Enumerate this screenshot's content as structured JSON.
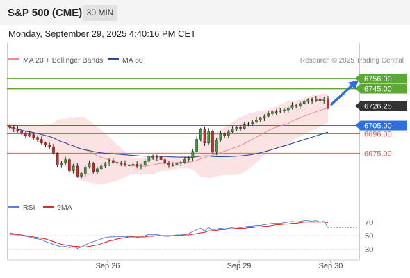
{
  "header": {
    "instrument": "S&P 500 (CME)",
    "interval": "30 MIN",
    "datetime": "Monday, September 29, 2025 4:40:16 PM CET"
  },
  "legend": {
    "bollinger": "MA 20 + Bollinger Bands",
    "ma50": "MA 50",
    "rsi": "RSI",
    "ma9": "9MA"
  },
  "attribution": "Research © 2025 Trading Central",
  "colors": {
    "resistance": "#5aa832",
    "pivot": "#2d6fde",
    "support": "#e25b5b",
    "last": "#333333",
    "ma50": "#2f4a9a",
    "bollinger_band": "#fbdada",
    "ma20": "#f08a8a",
    "rsi": "#5b7fd6",
    "rsi_ma9": "#d93030"
  },
  "chart_data": [
    {
      "type": "candlestick",
      "title": "S&P 500 (CME)",
      "ylim": [
        6630,
        6765
      ],
      "x": [
        "Sep 26",
        "Sep 29",
        "Sep 30"
      ],
      "levels": [
        {
          "value": 6756.0,
          "label": "6756.00",
          "kind": "resistance"
        },
        {
          "value": 6745.0,
          "label": "6745.00",
          "kind": "resistance"
        },
        {
          "value": 6726.25,
          "label": "6726.25",
          "kind": "last"
        },
        {
          "value": 6705.0,
          "label": "6705.00",
          "kind": "pivot"
        },
        {
          "value": 6696.0,
          "label": "6696.00",
          "kind": "support"
        },
        {
          "value": 6675.0,
          "label": "6675.00",
          "kind": "support"
        }
      ],
      "closes": [
        6703,
        6701,
        6699,
        6697,
        6694,
        6695,
        6692,
        6690,
        6686,
        6684,
        6682,
        6675,
        6662,
        6664,
        6668,
        6656,
        6661,
        6650,
        6653,
        6660,
        6664,
        6655,
        6658,
        6661,
        6664,
        6667,
        6665,
        6664,
        6664,
        6662,
        6662,
        6663,
        6660,
        6662,
        6666,
        6672,
        6670,
        6671,
        6668,
        6664,
        6662,
        6662,
        6664,
        6665,
        6668,
        6670,
        6677,
        6690,
        6701,
        6686,
        6699,
        6676,
        6689,
        6696,
        6694,
        6698,
        6701,
        6703,
        6702,
        6706,
        6707,
        6709,
        6711,
        6713,
        6715,
        6718,
        6720,
        6720,
        6721,
        6722,
        6724,
        6727,
        6726,
        6729,
        6731,
        6733,
        6732,
        6734,
        6732,
        6734,
        6724
      ],
      "trend_arrow": {
        "from": 6728,
        "to": 6754
      }
    },
    {
      "type": "line",
      "series": [
        {
          "name": "RSI",
          "values": [
            54,
            53,
            52,
            51,
            49,
            48,
            46,
            45,
            44,
            41,
            39,
            37,
            35,
            33,
            34,
            32,
            34,
            31,
            33,
            36,
            39,
            41,
            43,
            45,
            47,
            48,
            48,
            49,
            48,
            49,
            48,
            49,
            47,
            48,
            50,
            52,
            51,
            52,
            50,
            49,
            49,
            50,
            51,
            51,
            52,
            53,
            56,
            59,
            61,
            57,
            62,
            58,
            60,
            61,
            60,
            61,
            62,
            63,
            62,
            63,
            64,
            64,
            65,
            65,
            66,
            67,
            68,
            68,
            68,
            69,
            70,
            71,
            70,
            71,
            72,
            72,
            71,
            72,
            70,
            71,
            62
          ]
        },
        {
          "name": "9MA",
          "values": [
            52,
            52,
            51,
            51,
            50,
            49,
            48,
            47,
            46,
            45,
            43,
            41,
            39,
            37,
            36,
            35,
            34,
            34,
            33,
            33,
            34,
            35,
            36,
            38,
            40,
            42,
            43,
            45,
            46,
            47,
            48,
            48,
            48,
            48,
            48,
            49,
            49,
            50,
            50,
            50,
            50,
            50,
            50,
            50,
            51,
            51,
            52,
            53,
            54,
            55,
            57,
            57,
            58,
            59,
            59,
            60,
            60,
            61,
            61,
            61,
            62,
            62,
            63,
            63,
            64,
            64,
            65,
            66,
            66,
            67,
            67,
            68,
            68,
            69,
            70,
            70,
            70,
            70,
            70,
            70,
            69
          ]
        }
      ],
      "ylim": [
        20,
        80
      ],
      "yticks": [
        70,
        50,
        30
      ]
    }
  ]
}
